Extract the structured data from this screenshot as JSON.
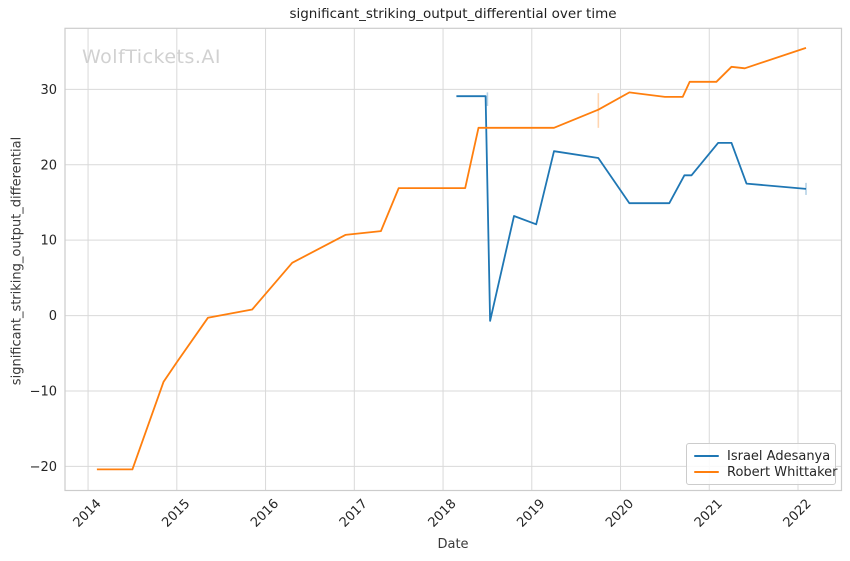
{
  "chart_data": {
    "type": "line",
    "title": "significant_striking_output_differential over time",
    "xlabel": "Date",
    "ylabel": "significant_striking_output_differential",
    "watermark": "WolfTickets.AI",
    "grid": true,
    "legend_position": "lower right",
    "xlim": [
      2013.74,
      2022.49
    ],
    "ylim": [
      -23.2,
      38.1
    ],
    "x_ticks": [
      2014,
      2015,
      2016,
      2017,
      2018,
      2019,
      2020,
      2021,
      2022
    ],
    "y_ticks": [
      {
        "label": "−20",
        "value": -20
      },
      {
        "label": "−10",
        "value": -10
      },
      {
        "label": "0",
        "value": 0
      },
      {
        "label": "10",
        "value": 10
      },
      {
        "label": "20",
        "value": 20
      },
      {
        "label": "30",
        "value": 30
      }
    ],
    "series": [
      {
        "name": "Israel Adesanya",
        "color": "#1f77b4",
        "points": [
          [
            2018.15,
            29.1
          ],
          [
            2018.48,
            29.1
          ],
          [
            2018.53,
            -0.7
          ],
          [
            2018.8,
            13.2
          ],
          [
            2019.05,
            12.1
          ],
          [
            2019.25,
            21.8
          ],
          [
            2019.75,
            20.9
          ],
          [
            2020.1,
            14.9
          ],
          [
            2020.55,
            14.9
          ],
          [
            2020.72,
            18.6
          ],
          [
            2020.8,
            18.6
          ],
          [
            2021.1,
            22.9
          ],
          [
            2021.25,
            22.9
          ],
          [
            2021.42,
            17.5
          ],
          [
            2022.09,
            16.8
          ]
        ],
        "error_ticks": [
          {
            "x": 2018.5,
            "y_low": 27.8,
            "y_high": 29.6
          },
          {
            "x": 2022.09,
            "y_low": 16.0,
            "y_high": 17.6
          }
        ]
      },
      {
        "name": "Robert Whittaker",
        "color": "#ff7f0e",
        "points": [
          [
            2014.1,
            -20.4
          ],
          [
            2014.5,
            -20.4
          ],
          [
            2014.85,
            -8.8
          ],
          [
            2015.0,
            -6.2
          ],
          [
            2015.35,
            -0.3
          ],
          [
            2015.85,
            0.8
          ],
          [
            2016.3,
            7.0
          ],
          [
            2016.9,
            10.7
          ],
          [
            2017.3,
            11.2
          ],
          [
            2017.5,
            16.9
          ],
          [
            2018.25,
            16.9
          ],
          [
            2018.4,
            24.9
          ],
          [
            2019.25,
            24.9
          ],
          [
            2019.75,
            27.3
          ],
          [
            2020.1,
            29.6
          ],
          [
            2020.5,
            29.0
          ],
          [
            2020.7,
            29.0
          ],
          [
            2020.78,
            31.0
          ],
          [
            2021.08,
            31.0
          ],
          [
            2021.25,
            33.0
          ],
          [
            2021.4,
            32.8
          ],
          [
            2022.09,
            35.5
          ]
        ],
        "error_ticks": [
          {
            "x": 2019.75,
            "y_low": 24.9,
            "y_high": 29.5
          }
        ]
      }
    ]
  }
}
